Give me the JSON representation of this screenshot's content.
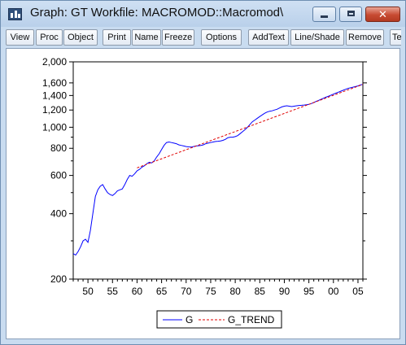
{
  "window": {
    "title": "Graph: GT   Workfile: MACROMOD::Macromod\\",
    "app_icon": "bar-chart-icon",
    "controls": {
      "minimize": "minimize-icon",
      "maximize": "maximize-icon",
      "close_label": "✕"
    }
  },
  "toolbar": {
    "buttons": [
      {
        "label": "View"
      },
      {
        "label": "Proc"
      },
      {
        "label": "Object"
      },
      {
        "label": "Print"
      },
      {
        "label": "Name"
      },
      {
        "label": "Freeze"
      },
      {
        "label": "Options"
      },
      {
        "label": "AddText"
      },
      {
        "label": "Line/Shade"
      },
      {
        "label": "Remove"
      },
      {
        "label": "Te"
      }
    ]
  },
  "chart_data": {
    "type": "line",
    "title": "",
    "xlabel": "",
    "ylabel": "",
    "y_scale": "log",
    "xlim": [
      1947,
      2006
    ],
    "ylim": [
      200,
      2000
    ],
    "x_ticks": [
      1950,
      1955,
      1960,
      1965,
      1970,
      1975,
      1980,
      1985,
      1990,
      1995,
      2000,
      2005
    ],
    "x_tick_labels": [
      "50",
      "55",
      "60",
      "65",
      "70",
      "75",
      "80",
      "85",
      "90",
      "95",
      "00",
      "05"
    ],
    "y_ticks": [
      200,
      400,
      600,
      800,
      1000,
      1200,
      1400,
      1600,
      2000
    ],
    "y_tick_labels": [
      "200",
      "400",
      "600",
      "800",
      "1,000",
      "1,200",
      "1,400",
      "1,600",
      "2,000"
    ],
    "grid": false,
    "legend_position": "bottom-center",
    "series": [
      {
        "name": "G",
        "color": "#0000ff",
        "style": "solid",
        "x": [
          1947.0,
          1947.5,
          1948.0,
          1948.5,
          1949.0,
          1949.5,
          1950.0,
          1950.5,
          1951.0,
          1951.5,
          1952.0,
          1952.5,
          1953.0,
          1953.5,
          1954.0,
          1954.5,
          1955.0,
          1955.5,
          1956.0,
          1956.5,
          1957.0,
          1957.5,
          1958.0,
          1958.5,
          1959.0,
          1959.5,
          1960.0,
          1960.5,
          1961.0,
          1961.5,
          1962.0,
          1962.5,
          1963.0,
          1963.5,
          1964.0,
          1964.5,
          1965.0,
          1965.5,
          1966.0,
          1966.5,
          1967.0,
          1967.5,
          1968.0,
          1968.5,
          1969.0,
          1969.5,
          1970.0,
          1970.5,
          1971.0,
          1971.5,
          1972.0,
          1972.5,
          1973.0,
          1973.5,
          1974.0,
          1974.5,
          1975.0,
          1975.5,
          1976.0,
          1976.5,
          1977.0,
          1977.5,
          1978.0,
          1978.5,
          1979.0,
          1979.5,
          1980.0,
          1980.5,
          1981.0,
          1981.5,
          1982.0,
          1982.5,
          1983.0,
          1983.5,
          1984.0,
          1984.5,
          1985.0,
          1985.5,
          1986.0,
          1986.5,
          1987.0,
          1987.5,
          1988.0,
          1988.5,
          1989.0,
          1989.5,
          1990.0,
          1990.5,
          1991.0,
          1991.5,
          1992.0,
          1992.5,
          1993.0,
          1993.5,
          1994.0,
          1994.5,
          1995.0,
          1995.5,
          1996.0,
          1996.5,
          1997.0,
          1997.5,
          1998.0,
          1998.5,
          1999.0,
          1999.5,
          2000.0,
          2000.5,
          2001.0,
          2001.5,
          2002.0,
          2002.5,
          2003.0,
          2003.5,
          2004.0,
          2004.5,
          2005.0,
          2005.5,
          2006.0
        ],
        "values": [
          262,
          258,
          268,
          282,
          300,
          305,
          295,
          335,
          400,
          480,
          515,
          535,
          545,
          520,
          500,
          490,
          485,
          495,
          510,
          515,
          520,
          545,
          575,
          600,
          595,
          610,
          630,
          640,
          655,
          665,
          680,
          690,
          685,
          700,
          730,
          755,
          790,
          825,
          850,
          855,
          850,
          845,
          840,
          830,
          825,
          820,
          815,
          812,
          810,
          815,
          820,
          822,
          825,
          830,
          840,
          845,
          850,
          855,
          860,
          862,
          865,
          870,
          880,
          895,
          900,
          900,
          905,
          915,
          935,
          955,
          975,
          1000,
          1030,
          1060,
          1080,
          1100,
          1120,
          1140,
          1160,
          1175,
          1185,
          1190,
          1200,
          1210,
          1225,
          1240,
          1250,
          1255,
          1250,
          1245,
          1250,
          1255,
          1260,
          1262,
          1265,
          1270,
          1275,
          1285,
          1300,
          1315,
          1330,
          1345,
          1360,
          1375,
          1390,
          1405,
          1420,
          1435,
          1450,
          1465,
          1480,
          1495,
          1510,
          1520,
          1530,
          1540,
          1550,
          1565,
          1575
        ]
      },
      {
        "name": "G_TREND",
        "color": "#e00000",
        "style": "dashed",
        "x": [
          1960,
          2006
        ],
        "values": [
          650,
          1575
        ]
      }
    ]
  }
}
